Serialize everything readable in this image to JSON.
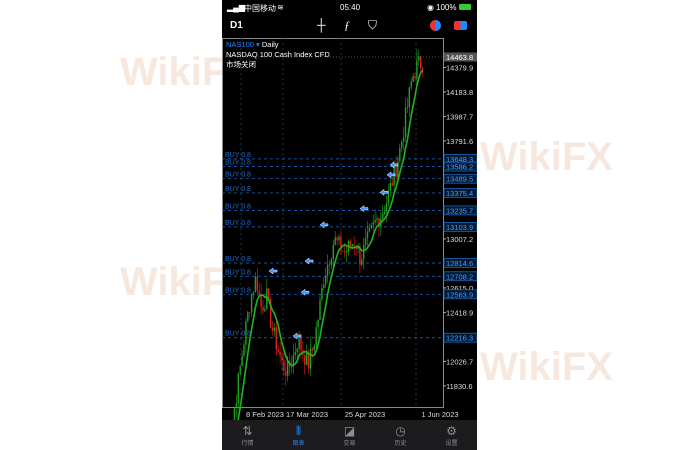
{
  "status_bar": {
    "carrier": "中国移动",
    "time": "05:40",
    "battery": "100%"
  },
  "toolbar": {
    "timeframe": "D1",
    "icons": [
      "crosshair-icon",
      "function-icon",
      "objects-icon",
      "one-click-trading-icon",
      "trade-icon"
    ]
  },
  "symbol_info": {
    "symbol": "NAS100",
    "arrow": "▾",
    "period": "Daily",
    "description": "NASDAQ 100 Cash Index CFD",
    "market_status": "市场关闭"
  },
  "colors": {
    "bull": "#1fa51f",
    "bear": "#e0201a",
    "ma": "#22b422",
    "level": "#1e6fd0",
    "accent": "#1e88ff"
  },
  "chart_data": {
    "type": "candlestick",
    "symbol": "NAS100",
    "timeframe": "Daily",
    "current_price": "14463.8",
    "y_ticks": [
      "14379.9",
      "14183.8",
      "13987.7",
      "13791.6",
      "13007.2",
      "12615.0",
      "12418.9",
      "12026.7",
      "11830.6"
    ],
    "x_ticks": [
      "8 Feb 2023",
      "17 Mar 2023",
      "25 Apr 2023",
      "1 Jun 2023"
    ],
    "close_path": [
      11300,
      11450,
      11700,
      12000,
      12300,
      12550,
      12700,
      12450,
      12550,
      12300,
      12150,
      12000,
      11950,
      12050,
      12200,
      12100,
      12000,
      12150,
      12400,
      12700,
      12850,
      13000,
      12950,
      12900,
      12950,
      13000,
      12850,
      12950,
      13050,
      13150,
      13200,
      13300,
      13450,
      13600,
      13800,
      14050,
      14300,
      14400,
      14420
    ],
    "ylim": [
      11700,
      14520
    ],
    "buy_levels": [
      {
        "label": "BUY 0.8",
        "price": "13648.3"
      },
      {
        "label": "BUY 0.8",
        "price": "13586.2"
      },
      {
        "label": "BUY 0.8",
        "price": "13489.5"
      },
      {
        "label": "BUY 0.8",
        "price": "13375.4"
      },
      {
        "label": "BUY 0.8",
        "price": "13235.7"
      },
      {
        "label": "BUY 0.8",
        "price": "13103.9"
      },
      {
        "label": "BUY 0.8",
        "price": "12814.6"
      },
      {
        "label": "BUY 0.8",
        "price": "12708.2"
      },
      {
        "label": "BUY 0.8",
        "price": "12563.9"
      },
      {
        "label": "BUY 0.8",
        "price": "12216.3"
      }
    ],
    "moving_average": true
  },
  "nav": [
    {
      "label": "行情",
      "icon": "quotes-icon",
      "glyph": "⇅"
    },
    {
      "label": "图表",
      "icon": "chart-icon",
      "glyph": "⫴",
      "active": true
    },
    {
      "label": "交易",
      "icon": "trade-icon",
      "glyph": "◪"
    },
    {
      "label": "历史",
      "icon": "history-icon",
      "glyph": "◷"
    },
    {
      "label": "设置",
      "icon": "settings-icon",
      "glyph": "⚙"
    }
  ]
}
